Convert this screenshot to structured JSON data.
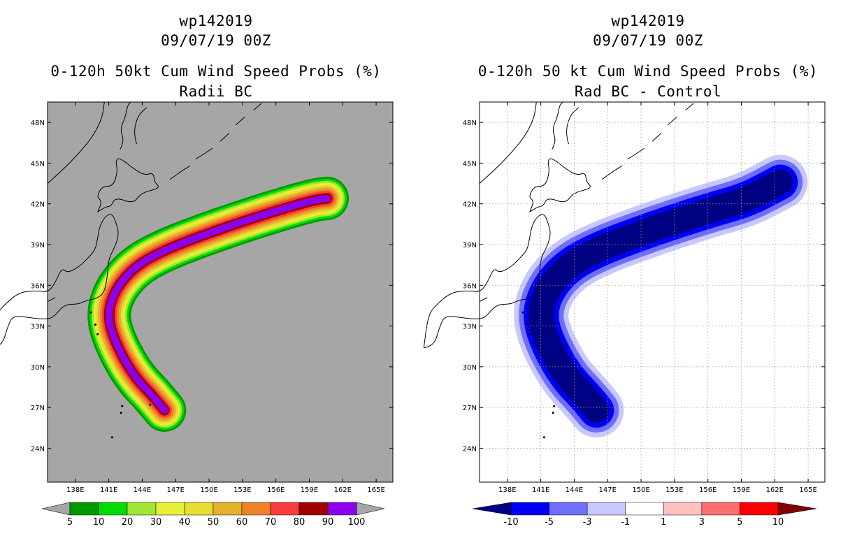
{
  "chart_data": [
    {
      "type": "heatmap",
      "storm_id": "wp142019",
      "date": "09/07/19 00Z",
      "title": "0-120h 50kt Cum Wind Speed Probs (%)",
      "subtitle": "Radii BC",
      "xlabel": "",
      "ylabel": "",
      "xlim": [
        135.5,
        166.5
      ],
      "ylim": [
        21.5,
        49.5
      ],
      "x_tick_labels": [
        "138E",
        "141E",
        "144E",
        "147E",
        "150E",
        "153E",
        "156E",
        "159E",
        "162E",
        "165E"
      ],
      "y_tick_labels": [
        "24N",
        "27N",
        "30N",
        "33N",
        "36N",
        "39N",
        "42N",
        "45N",
        "48N"
      ],
      "background_color": "#a6a6a6",
      "gridlines": false,
      "colorbar": {
        "labels": [
          "5",
          "10",
          "20",
          "30",
          "40",
          "50",
          "60",
          "70",
          "80",
          "90",
          "100"
        ],
        "colors": [
          "#009a00",
          "#00dc00",
          "#a0e632",
          "#e6f036",
          "#e6dc32",
          "#e6af2d",
          "#f08228",
          "#fa3c3c",
          "#a00000",
          "#8c00f0"
        ]
      },
      "track_levels": [
        5,
        10,
        20,
        30,
        40,
        50,
        60,
        70,
        80,
        90
      ]
    },
    {
      "type": "heatmap",
      "storm_id": "wp142019",
      "date": "09/07/19 00Z",
      "title": "0-120h 50 kt Cum Wind Speed Probs (%)",
      "subtitle": "Rad BC - Control",
      "xlabel": "",
      "ylabel": "",
      "xlim": [
        135.5,
        166.5
      ],
      "ylim": [
        21.5,
        49.5
      ],
      "x_tick_labels": [
        "138E",
        "141E",
        "144E",
        "147E",
        "150E",
        "153E",
        "156E",
        "159E",
        "162E",
        "165E"
      ],
      "y_tick_labels": [
        "24N",
        "27N",
        "30N",
        "33N",
        "36N",
        "39N",
        "42N",
        "45N",
        "48N"
      ],
      "background_color": "#ffffff",
      "gridlines": true,
      "colorbar": {
        "labels": [
          "-10",
          "-5",
          "-3",
          "-1",
          "1",
          "3",
          "5",
          "10"
        ],
        "colors": [
          "#000082",
          "#0000f0",
          "#6e6eff",
          "#c8c8ff",
          "#ffffff",
          "#ffc0c0",
          "#ff6e6e",
          "#ff0000",
          "#820000"
        ]
      },
      "track_levels": [
        -1,
        -3,
        -5,
        -10
      ]
    }
  ]
}
